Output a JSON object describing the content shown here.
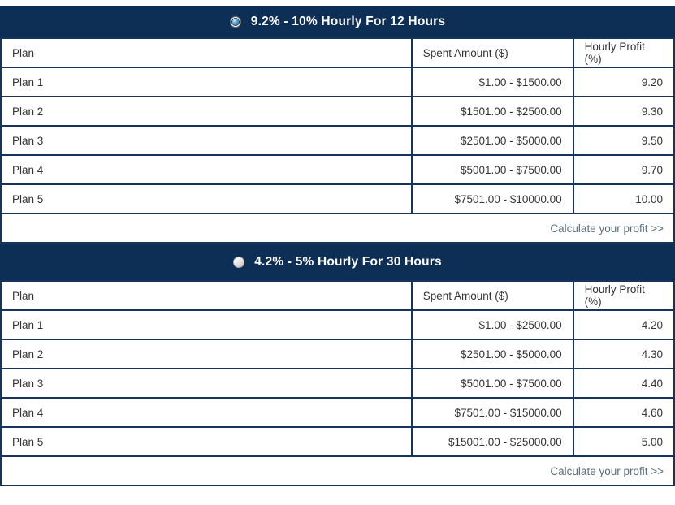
{
  "colors": {
    "header_bar": "#0d2f56",
    "table_border": "#15355d",
    "link_text": "#5a6e7e",
    "radio_selected_dot": "#2e86c8",
    "body_text": "#333333"
  },
  "tables": [
    {
      "title": "9.2% - 10% Hourly For 12 Hours",
      "radio_selected": true,
      "columns": [
        "Plan",
        "Spent Amount ($)",
        "Hourly Profit (%)"
      ],
      "rows": [
        {
          "plan": "Plan 1",
          "spent": "$1.00 - $1500.00",
          "profit": "9.20"
        },
        {
          "plan": "Plan 2",
          "spent": "$1501.00 - $2500.00",
          "profit": "9.30"
        },
        {
          "plan": "Plan 3",
          "spent": "$2501.00 - $5000.00",
          "profit": "9.50"
        },
        {
          "plan": "Plan 4",
          "spent": "$5001.00 - $7500.00",
          "profit": "9.70"
        },
        {
          "plan": "Plan 5",
          "spent": "$7501.00 - $10000.00",
          "profit": "10.00"
        }
      ],
      "footer_link": "Calculate your profit >>"
    },
    {
      "title": "4.2% - 5% Hourly For 30 Hours",
      "radio_selected": false,
      "columns": [
        "Plan",
        "Spent Amount ($)",
        "Hourly Profit (%)"
      ],
      "rows": [
        {
          "plan": "Plan 1",
          "spent": "$1.00 - $2500.00",
          "profit": "4.20"
        },
        {
          "plan": "Plan 2",
          "spent": "$2501.00 - $5000.00",
          "profit": "4.30"
        },
        {
          "plan": "Plan 3",
          "spent": "$5001.00 - $7500.00",
          "profit": "4.40"
        },
        {
          "plan": "Plan 4",
          "spent": "$7501.00 - $15000.00",
          "profit": "4.60"
        },
        {
          "plan": "Plan 5",
          "spent": "$15001.00 - $25000.00",
          "profit": "5.00"
        }
      ],
      "footer_link": "Calculate your profit >>"
    }
  ]
}
